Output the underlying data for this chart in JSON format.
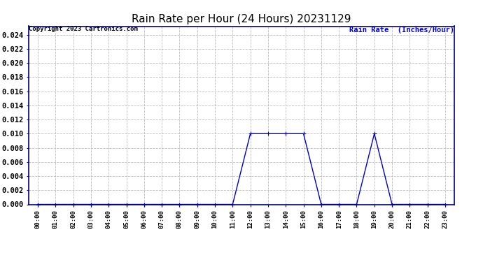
{
  "title": "Rain Rate per Hour (24 Hours) 20231129",
  "copyright_text": "Copyright 2023 Cartronics.com",
  "legend_label": "Rain Rate  (Inches/Hour)",
  "line_color": "#0000cc",
  "background_color": "#ffffff",
  "grid_color": "#bbbbbb",
  "ylim": [
    0,
    0.0252
  ],
  "yticks": [
    0.0,
    0.002,
    0.004,
    0.006,
    0.008,
    0.01,
    0.012,
    0.014,
    0.016,
    0.018,
    0.02,
    0.022,
    0.024
  ],
  "hours": [
    0,
    1,
    2,
    3,
    4,
    5,
    6,
    7,
    8,
    9,
    10,
    11,
    12,
    13,
    14,
    15,
    16,
    17,
    18,
    19,
    20,
    21,
    22,
    23
  ],
  "values": [
    0.0,
    0.0,
    0.0,
    0.0,
    0.0,
    0.0,
    0.0,
    0.0,
    0.0,
    0.0,
    0.0,
    0.0,
    0.01,
    0.01,
    0.01,
    0.01,
    0.0,
    0.0,
    0.0,
    0.01,
    0.0,
    0.0,
    0.0,
    0.0
  ],
  "marker": "+",
  "marker_size": 4,
  "line_width": 1.0,
  "title_fontsize": 11,
  "tick_fontsize": 6.5,
  "copyright_fontsize": 6.5,
  "legend_fontsize": 7.5,
  "ytick_fontsize": 7.5,
  "border_color": "#000080"
}
